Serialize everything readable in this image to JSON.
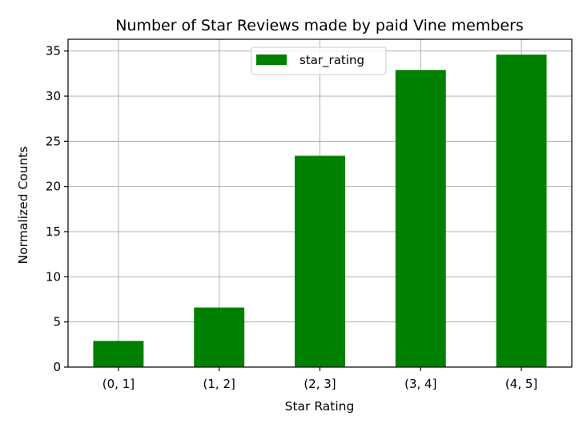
{
  "chart_data": {
    "type": "bar",
    "title": "Number of Star Reviews made by paid Vine members",
    "xlabel": "Star Rating",
    "ylabel": "Normalized Counts",
    "categories": [
      "(0, 1]",
      "(1, 2]",
      "(2, 3]",
      "(3, 4]",
      "(4, 5]"
    ],
    "series": [
      {
        "name": "star_rating",
        "values": [
          2.9,
          6.6,
          23.4,
          32.9,
          34.6
        ],
        "color": "#008000"
      }
    ],
    "ylim": [
      0,
      36.3
    ],
    "yticks": [
      0,
      5,
      10,
      15,
      20,
      25,
      30,
      35
    ],
    "grid": true,
    "legend_position": "top-center"
  }
}
